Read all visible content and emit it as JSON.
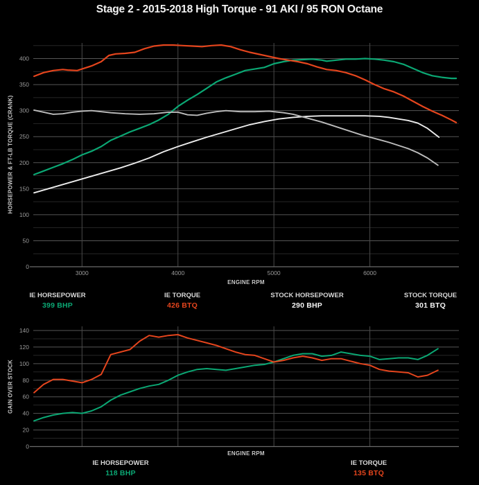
{
  "title": "Stage 2 - 2015-2018 High Torque - 91 AKI / 95 RON Octane",
  "colors": {
    "ie_green": "#0BA874",
    "ie_red": "#E5451D",
    "stock_white": "#EDEDED",
    "stock_gray": "#BDBDBD",
    "background": "#000000"
  },
  "legend_top": [
    {
      "label": "IE HORSEPOWER",
      "value": "399 BHP",
      "color": "#0BA874"
    },
    {
      "label": "IE TORQUE",
      "value": "426 BTQ",
      "color": "#E5451D"
    },
    {
      "label": "STOCK HORSEPOWER",
      "value": "290 BHP",
      "color": "#F5F5F5"
    },
    {
      "label": "STOCK TORQUE",
      "value": "301 BTQ",
      "color": "#F5F5F5"
    }
  ],
  "legend_bottom": [
    {
      "label": "IE HORSEPOWER",
      "value": "118 BHP",
      "color": "#0BA874"
    },
    {
      "label": "IE TORQUE",
      "value": "135 BTQ",
      "color": "#E5451D"
    }
  ],
  "chart_data": [
    {
      "id": "top",
      "type": "line",
      "xlabel": "ENGINE RPM",
      "ylabel": "HORSEPOWER & FT-LB TORQUE (CRANK)",
      "xlim": [
        2492,
        6928
      ],
      "ylim": [
        0,
        430
      ],
      "xticks": [
        3000,
        4000,
        5000,
        6000
      ],
      "xtick_labels": true,
      "ytick_minor": 25,
      "ytick_major": 50,
      "grid_max": 425,
      "label_max": 400,
      "legend_position": "below",
      "grid": true,
      "series": [
        {
          "name": "IE HORSEPOWER",
          "color": "#0BA874",
          "width": 2.2,
          "points": [
            [
              2500,
              177
            ],
            [
              2600,
              184
            ],
            [
              2700,
              191
            ],
            [
              2800,
              198
            ],
            [
              2900,
              206
            ],
            [
              3000,
              215
            ],
            [
              3100,
              222
            ],
            [
              3200,
              231
            ],
            [
              3300,
              243
            ],
            [
              3400,
              251
            ],
            [
              3500,
              259
            ],
            [
              3600,
              266
            ],
            [
              3700,
              273
            ],
            [
              3800,
              282
            ],
            [
              3900,
              293
            ],
            [
              4000,
              308
            ],
            [
              4100,
              320
            ],
            [
              4200,
              331
            ],
            [
              4300,
              343
            ],
            [
              4400,
              355
            ],
            [
              4500,
              363
            ],
            [
              4600,
              370
            ],
            [
              4700,
              377
            ],
            [
              4800,
              380
            ],
            [
              4900,
              383
            ],
            [
              5000,
              390
            ],
            [
              5100,
              394
            ],
            [
              5200,
              397
            ],
            [
              5300,
              398
            ],
            [
              5400,
              399
            ],
            [
              5500,
              397
            ],
            [
              5550,
              395
            ],
            [
              5650,
              397
            ],
            [
              5750,
              399
            ],
            [
              5850,
              399
            ],
            [
              5950,
              400
            ],
            [
              6050,
              399
            ],
            [
              6150,
              397
            ],
            [
              6250,
              394
            ],
            [
              6350,
              389
            ],
            [
              6450,
              381
            ],
            [
              6550,
              373
            ],
            [
              6650,
              367
            ],
            [
              6750,
              364
            ],
            [
              6850,
              362
            ],
            [
              6900,
              362
            ]
          ]
        },
        {
          "name": "IE TORQUE",
          "color": "#E5451D",
          "width": 2.2,
          "points": [
            [
              2500,
              366
            ],
            [
              2600,
              373
            ],
            [
              2700,
              377
            ],
            [
              2800,
              379
            ],
            [
              2850,
              378
            ],
            [
              2950,
              377
            ],
            [
              3000,
              380
            ],
            [
              3100,
              386
            ],
            [
              3200,
              394
            ],
            [
              3280,
              406
            ],
            [
              3350,
              409
            ],
            [
              3450,
              410
            ],
            [
              3550,
              412
            ],
            [
              3650,
              419
            ],
            [
              3750,
              424
            ],
            [
              3850,
              426
            ],
            [
              3950,
              426
            ],
            [
              4050,
              425
            ],
            [
              4150,
              424
            ],
            [
              4250,
              423
            ],
            [
              4350,
              425
            ],
            [
              4450,
              426
            ],
            [
              4550,
              423
            ],
            [
              4650,
              417
            ],
            [
              4750,
              412
            ],
            [
              4850,
              408
            ],
            [
              4950,
              404
            ],
            [
              5050,
              400
            ],
            [
              5150,
              397
            ],
            [
              5250,
              394
            ],
            [
              5350,
              390
            ],
            [
              5450,
              384
            ],
            [
              5550,
              379
            ],
            [
              5650,
              377
            ],
            [
              5750,
              373
            ],
            [
              5850,
              367
            ],
            [
              5950,
              359
            ],
            [
              6050,
              350
            ],
            [
              6150,
              342
            ],
            [
              6250,
              336
            ],
            [
              6350,
              328
            ],
            [
              6450,
              318
            ],
            [
              6550,
              308
            ],
            [
              6650,
              299
            ],
            [
              6750,
              291
            ],
            [
              6850,
              282
            ],
            [
              6900,
              277
            ]
          ]
        },
        {
          "name": "STOCK HORSEPOWER",
          "color": "#EDEDED",
          "width": 1.9,
          "points": [
            [
              2500,
              142
            ],
            [
              2650,
              150
            ],
            [
              2800,
              158
            ],
            [
              2950,
              166
            ],
            [
              3100,
              174
            ],
            [
              3250,
              182
            ],
            [
              3400,
              190
            ],
            [
              3550,
              199
            ],
            [
              3700,
              209
            ],
            [
              3850,
              221
            ],
            [
              4000,
              231
            ],
            [
              4150,
              240
            ],
            [
              4300,
              249
            ],
            [
              4450,
              257
            ],
            [
              4600,
              265
            ],
            [
              4750,
              273
            ],
            [
              4900,
              279
            ],
            [
              5050,
              284
            ],
            [
              5200,
              287
            ],
            [
              5350,
              289
            ],
            [
              5500,
              290
            ],
            [
              5650,
              290
            ],
            [
              5800,
              290
            ],
            [
              5950,
              290
            ],
            [
              6100,
              289
            ],
            [
              6200,
              287
            ],
            [
              6300,
              284
            ],
            [
              6400,
              281
            ],
            [
              6500,
              276
            ],
            [
              6600,
              266
            ],
            [
              6720,
              249
            ]
          ]
        },
        {
          "name": "STOCK TORQUE",
          "color": "#BDBDBD",
          "width": 1.9,
          "points": [
            [
              2500,
              301
            ],
            [
              2600,
              297
            ],
            [
              2700,
              293
            ],
            [
              2800,
              294
            ],
            [
              2900,
              297
            ],
            [
              3000,
              299
            ],
            [
              3100,
              300
            ],
            [
              3200,
              298
            ],
            [
              3300,
              296
            ],
            [
              3450,
              294
            ],
            [
              3600,
              293
            ],
            [
              3750,
              294
            ],
            [
              3900,
              297
            ],
            [
              4000,
              297
            ],
            [
              4100,
              292
            ],
            [
              4200,
              291
            ],
            [
              4300,
              295
            ],
            [
              4400,
              298
            ],
            [
              4500,
              300
            ],
            [
              4650,
              298
            ],
            [
              4800,
              298
            ],
            [
              4950,
              299
            ],
            [
              5100,
              296
            ],
            [
              5200,
              293
            ],
            [
              5300,
              288
            ],
            [
              5400,
              283
            ],
            [
              5500,
              278
            ],
            [
              5600,
              272
            ],
            [
              5700,
              266
            ],
            [
              5800,
              260
            ],
            [
              5900,
              254
            ],
            [
              6000,
              249
            ],
            [
              6100,
              244
            ],
            [
              6200,
              239
            ],
            [
              6300,
              233
            ],
            [
              6400,
              227
            ],
            [
              6500,
              219
            ],
            [
              6600,
              209
            ],
            [
              6710,
              195
            ]
          ]
        }
      ]
    },
    {
      "id": "bottom",
      "type": "line",
      "xlabel": "ENGINE RPM",
      "ylabel": "GAIN OVER STOCK",
      "xlim": [
        2492,
        6928
      ],
      "ylim": [
        0,
        145
      ],
      "xticks": [
        3000,
        4000,
        5000,
        6000
      ],
      "xtick_labels": false,
      "ytick_minor": 10,
      "ytick_major": 20,
      "grid_max": 140,
      "label_max": 140,
      "legend_position": "below",
      "grid": true,
      "series": [
        {
          "name": "IE HORSEPOWER GAIN",
          "color": "#0BA874",
          "width": 2.0,
          "points": [
            [
              2500,
              31
            ],
            [
              2600,
              35
            ],
            [
              2700,
              38
            ],
            [
              2800,
              40
            ],
            [
              2900,
              41
            ],
            [
              3000,
              40
            ],
            [
              3100,
              43
            ],
            [
              3200,
              48
            ],
            [
              3300,
              56
            ],
            [
              3400,
              62
            ],
            [
              3500,
              66
            ],
            [
              3600,
              70
            ],
            [
              3700,
              73
            ],
            [
              3800,
              75
            ],
            [
              3900,
              80
            ],
            [
              4000,
              86
            ],
            [
              4100,
              90
            ],
            [
              4200,
              93
            ],
            [
              4300,
              94
            ],
            [
              4400,
              93
            ],
            [
              4500,
              92
            ],
            [
              4600,
              94
            ],
            [
              4700,
              96
            ],
            [
              4800,
              98
            ],
            [
              4900,
              99
            ],
            [
              5000,
              102
            ],
            [
              5100,
              106
            ],
            [
              5200,
              110
            ],
            [
              5300,
              112
            ],
            [
              5400,
              112
            ],
            [
              5500,
              109
            ],
            [
              5600,
              110
            ],
            [
              5700,
              114
            ],
            [
              5800,
              112
            ],
            [
              5900,
              110
            ],
            [
              6000,
              109
            ],
            [
              6100,
              105
            ],
            [
              6200,
              106
            ],
            [
              6300,
              107
            ],
            [
              6400,
              107
            ],
            [
              6500,
              105
            ],
            [
              6600,
              110
            ],
            [
              6710,
              118
            ]
          ]
        },
        {
          "name": "IE TORQUE GAIN",
          "color": "#E5451D",
          "width": 2.0,
          "points": [
            [
              2500,
              65
            ],
            [
              2600,
              75
            ],
            [
              2700,
              81
            ],
            [
              2800,
              81
            ],
            [
              2900,
              79
            ],
            [
              3000,
              77
            ],
            [
              3100,
              81
            ],
            [
              3200,
              87
            ],
            [
              3300,
              111
            ],
            [
              3400,
              114
            ],
            [
              3500,
              117
            ],
            [
              3600,
              127
            ],
            [
              3700,
              134
            ],
            [
              3800,
              132
            ],
            [
              3900,
              134
            ],
            [
              4000,
              135
            ],
            [
              4100,
              131
            ],
            [
              4200,
              128
            ],
            [
              4300,
              125
            ],
            [
              4400,
              122
            ],
            [
              4500,
              118
            ],
            [
              4600,
              114
            ],
            [
              4700,
              111
            ],
            [
              4800,
              110
            ],
            [
              4900,
              106
            ],
            [
              5000,
              102
            ],
            [
              5100,
              104
            ],
            [
              5200,
              107
            ],
            [
              5300,
              109
            ],
            [
              5400,
              107
            ],
            [
              5500,
              104
            ],
            [
              5600,
              106
            ],
            [
              5700,
              106
            ],
            [
              5800,
              103
            ],
            [
              5900,
              100
            ],
            [
              6000,
              98
            ],
            [
              6100,
              93
            ],
            [
              6200,
              91
            ],
            [
              6300,
              90
            ],
            [
              6400,
              89
            ],
            [
              6500,
              84
            ],
            [
              6600,
              86
            ],
            [
              6710,
              92
            ]
          ]
        }
      ]
    }
  ]
}
